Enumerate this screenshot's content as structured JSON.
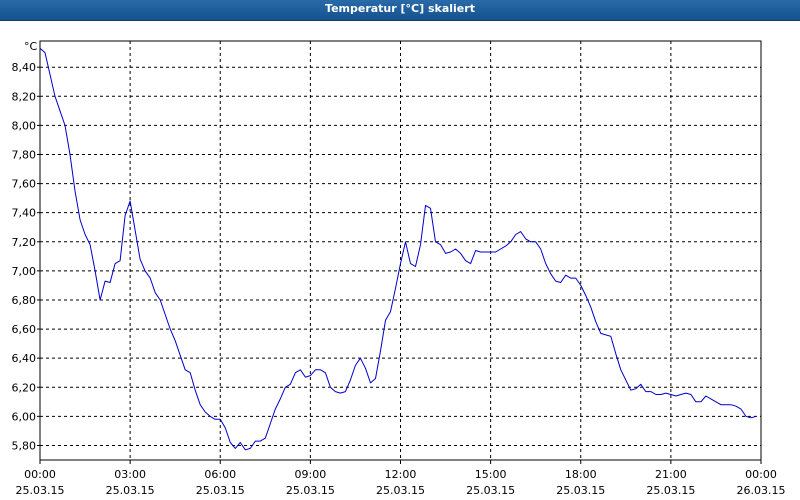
{
  "window": {
    "title": "Temperatur [°C] skaliert"
  },
  "chart_data": {
    "type": "line",
    "title": "Temperatur [°C] skaliert",
    "unit_label": "°C",
    "xlabel": "",
    "ylabel": "",
    "ylim": [
      5.7,
      8.58
    ],
    "xlim_hours": [
      0,
      24
    ],
    "grid": true,
    "y_ticks": [
      "5,80",
      "6,00",
      "6,20",
      "6,40",
      "6,60",
      "6,80",
      "7,00",
      "7,20",
      "7,40",
      "7,60",
      "7,80",
      "8,00",
      "8,20",
      "8,40"
    ],
    "x_ticks": [
      {
        "time": "00:00",
        "date": "25.03.15"
      },
      {
        "time": "03:00",
        "date": "25.03.15"
      },
      {
        "time": "06:00",
        "date": "25.03.15"
      },
      {
        "time": "09:00",
        "date": "25.03.15"
      },
      {
        "time": "12:00",
        "date": "25.03.15"
      },
      {
        "time": "15:00",
        "date": "25.03.15"
      },
      {
        "time": "18:00",
        "date": "25.03.15"
      },
      {
        "time": "21:00",
        "date": "25.03.15"
      },
      {
        "time": "00:00",
        "date": "26.03.15"
      }
    ],
    "series": [
      {
        "color": "#0000cc",
        "x": [
          "25.03.15 00:00",
          "25.03.15 00:10",
          "25.03.15 00:20",
          "25.03.15 00:30",
          "25.03.15 00:40",
          "25.03.15 00:50",
          "25.03.15 01:00",
          "25.03.15 01:10",
          "25.03.15 01:20",
          "25.03.15 01:30",
          "25.03.15 01:40",
          "25.03.15 01:50",
          "25.03.15 02:00",
          "25.03.15 02:10",
          "25.03.15 02:20",
          "25.03.15 02:30",
          "25.03.15 02:40",
          "25.03.15 02:50",
          "25.03.15 03:00",
          "25.03.15 03:10",
          "25.03.15 03:20",
          "25.03.15 03:30",
          "25.03.15 03:40",
          "25.03.15 03:50",
          "25.03.15 04:00",
          "25.03.15 04:10",
          "25.03.15 04:20",
          "25.03.15 04:30",
          "25.03.15 04:40",
          "25.03.15 04:50",
          "25.03.15 05:00",
          "25.03.15 05:10",
          "25.03.15 05:20",
          "25.03.15 05:30",
          "25.03.15 05:40",
          "25.03.15 05:50",
          "25.03.15 06:00",
          "25.03.15 06:10",
          "25.03.15 06:20",
          "25.03.15 06:30",
          "25.03.15 06:40",
          "25.03.15 06:50",
          "25.03.15 07:00",
          "25.03.15 07:10",
          "25.03.15 07:20",
          "25.03.15 07:30",
          "25.03.15 07:40",
          "25.03.15 07:50",
          "25.03.15 08:00",
          "25.03.15 08:10",
          "25.03.15 08:20",
          "25.03.15 08:30",
          "25.03.15 08:40",
          "25.03.15 08:50",
          "25.03.15 09:00",
          "25.03.15 09:10",
          "25.03.15 09:20",
          "25.03.15 09:30",
          "25.03.15 09:40",
          "25.03.15 09:50",
          "25.03.15 10:00",
          "25.03.15 10:10",
          "25.03.15 10:20",
          "25.03.15 10:30",
          "25.03.15 10:40",
          "25.03.15 10:50",
          "25.03.15 11:00",
          "25.03.15 11:10",
          "25.03.15 11:20",
          "25.03.15 11:30",
          "25.03.15 11:40",
          "25.03.15 11:50",
          "25.03.15 12:00",
          "25.03.15 12:10",
          "25.03.15 12:20",
          "25.03.15 12:30",
          "25.03.15 12:40",
          "25.03.15 12:50",
          "25.03.15 13:00",
          "25.03.15 13:10",
          "25.03.15 13:20",
          "25.03.15 13:30",
          "25.03.15 13:40",
          "25.03.15 13:50",
          "25.03.15 14:00",
          "25.03.15 14:10",
          "25.03.15 14:20",
          "25.03.15 14:30",
          "25.03.15 14:40",
          "25.03.15 14:50",
          "25.03.15 15:00",
          "25.03.15 15:10",
          "25.03.15 15:20",
          "25.03.15 15:30",
          "25.03.15 15:40",
          "25.03.15 15:50",
          "25.03.15 16:00",
          "25.03.15 16:10",
          "25.03.15 16:20",
          "25.03.15 16:30",
          "25.03.15 16:40",
          "25.03.15 16:50",
          "25.03.15 17:00",
          "25.03.15 17:10",
          "25.03.15 17:20",
          "25.03.15 17:30",
          "25.03.15 17:40",
          "25.03.15 17:50",
          "25.03.15 18:00",
          "25.03.15 18:10",
          "25.03.15 18:20",
          "25.03.15 18:30",
          "25.03.15 18:40",
          "25.03.15 18:50",
          "25.03.15 19:00",
          "25.03.15 19:10",
          "25.03.15 19:20",
          "25.03.15 19:30",
          "25.03.15 19:40",
          "25.03.15 19:50",
          "25.03.15 20:00",
          "25.03.15 20:10",
          "25.03.15 20:20",
          "25.03.15 20:30",
          "25.03.15 20:40",
          "25.03.15 20:50",
          "25.03.15 21:00",
          "25.03.15 21:10",
          "25.03.15 21:20",
          "25.03.15 21:30",
          "25.03.15 21:40",
          "25.03.15 21:50",
          "25.03.15 22:00",
          "25.03.15 22:10",
          "25.03.15 22:20",
          "25.03.15 22:30",
          "25.03.15 22:40",
          "25.03.15 22:50",
          "25.03.15 23:00",
          "25.03.15 23:10",
          "25.03.15 23:20",
          "25.03.15 23:30",
          "25.03.15 23:40",
          "25.03.15 23:50"
        ],
        "y": [
          8.53,
          8.5,
          8.35,
          8.2,
          8.1,
          8.0,
          7.8,
          7.55,
          7.35,
          7.25,
          7.18,
          7.0,
          6.8,
          6.93,
          6.92,
          7.05,
          7.07,
          7.38,
          7.48,
          7.28,
          7.08,
          7.0,
          6.95,
          6.85,
          6.8,
          6.7,
          6.6,
          6.52,
          6.42,
          6.32,
          6.3,
          6.18,
          6.08,
          6.03,
          6.0,
          5.98,
          5.98,
          5.92,
          5.82,
          5.78,
          5.82,
          5.77,
          5.78,
          5.83,
          5.83,
          5.85,
          5.95,
          6.05,
          6.12,
          6.2,
          6.22,
          6.3,
          6.32,
          6.27,
          6.28,
          6.32,
          6.32,
          6.3,
          6.2,
          6.17,
          6.16,
          6.17,
          6.25,
          6.35,
          6.4,
          6.33,
          6.23,
          6.26,
          6.45,
          6.66,
          6.72,
          6.88,
          7.05,
          7.2,
          7.05,
          7.03,
          7.18,
          7.45,
          7.43,
          7.2,
          7.18,
          7.12,
          7.13,
          7.15,
          7.12,
          7.07,
          7.05,
          7.14,
          7.13,
          7.13,
          7.13,
          7.13,
          7.15,
          7.17,
          7.2,
          7.25,
          7.27,
          7.22,
          7.2,
          7.2,
          7.15,
          7.05,
          6.98,
          6.93,
          6.92,
          6.97,
          6.95,
          6.95,
          6.9,
          6.83,
          6.75,
          6.65,
          6.57,
          6.56,
          6.55,
          6.43,
          6.32,
          6.25,
          6.18,
          6.19,
          6.22,
          6.17,
          6.17,
          6.15,
          6.15,
          6.16,
          6.15,
          6.14,
          6.15,
          6.16,
          6.15,
          6.1,
          6.1,
          6.14,
          6.12,
          6.1,
          6.08,
          6.08,
          6.08,
          6.07,
          6.05,
          6.0,
          5.99,
          6.0
        ]
      }
    ]
  }
}
